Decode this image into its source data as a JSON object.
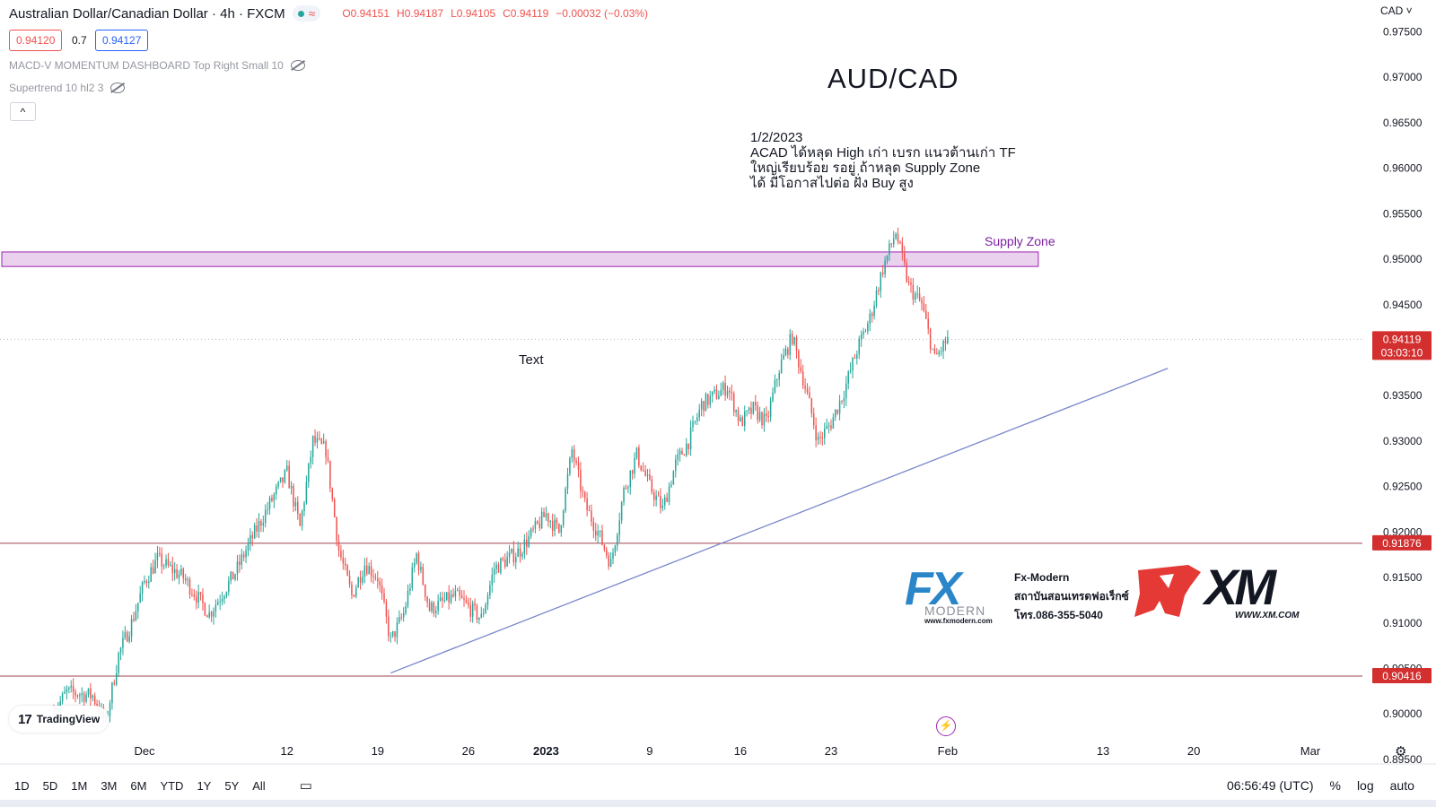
{
  "header": {
    "symbol_title": "Australian Dollar/Canadian Dollar · 4h · FXCM",
    "wave_symbol": "≈",
    "ohlc": {
      "open": "O0.94151",
      "high": "H0.94187",
      "low": "L0.94105",
      "close": "C0.94119",
      "change": "−0.00032 (−0.03%)"
    },
    "bid": "0.94120",
    "spread": "0.7",
    "ask": "0.94127"
  },
  "indicators": [
    {
      "label": "MACD-V MOMENTUM DASHBOARD Top Right Small 10"
    },
    {
      "label": "Supertrend 10 hl2 3"
    }
  ],
  "collapse_symbol": "^",
  "currency": "CAD ˅",
  "watermark": {
    "logo": "17",
    "text": "TradingView"
  },
  "ads": {
    "fx_letters": "FX",
    "fx_word": "MODERN",
    "fx_url": "www.fxmodern.com",
    "fx_lines": [
      "Fx-Modern",
      "สถาบันสอนเทรดฟอเร็กซ์",
      "โทร.086-355-5040"
    ],
    "xm_text": "XM",
    "xm_url": "WWW.XM.COM"
  },
  "bottom_bar": {
    "timeframes": [
      "1D",
      "5D",
      "1M",
      "3M",
      "6M",
      "YTD",
      "1Y",
      "5Y",
      "All"
    ],
    "calendar_symbol": "▭",
    "clock": "06:56:49 (UTC)",
    "percent": "%",
    "log": "log",
    "auto": "auto"
  },
  "icons": {
    "flash": "flash-icon",
    "gear": "gear-icon",
    "eye_hidden": "eye-hidden-icon",
    "calendar": "calendar-range-icon"
  },
  "colors": {
    "up": "#26a69a",
    "down": "#ef5350",
    "zone_fill": "#e1bee7",
    "zone_border": "#9c27b0",
    "trendline": "#7986cb",
    "level_line": "#a04050",
    "label_bg": "#d32f2f"
  },
  "chart_data": {
    "type": "candlestick",
    "title": "AUD/CAD",
    "annotation": "1/2/2023\nACAD ได้หลุด High เก่า เบรก แนวต้านเก่า TF\nใหญ่เรียบร้อย รอยู่ ถ้าหลุด Supply Zone\nได้ มีโอกาสไปต่อ ฝั่ง Buy สูง",
    "text_label": "Text",
    "x_labels": [
      {
        "label": "Dec",
        "date": "2022-12-01"
      },
      {
        "label": "12",
        "date": "2022-12-12"
      },
      {
        "label": "19",
        "date": "2022-12-19"
      },
      {
        "label": "26",
        "date": "2022-12-26"
      },
      {
        "label": "2023",
        "date": "2023-01-01"
      },
      {
        "label": "9",
        "date": "2023-01-09"
      },
      {
        "label": "16",
        "date": "2023-01-16"
      },
      {
        "label": "23",
        "date": "2023-01-23"
      },
      {
        "label": "Feb",
        "date": "2023-02-01"
      },
      {
        "label": "13",
        "date": "2023-02-13"
      },
      {
        "label": "20",
        "date": "2023-02-20"
      },
      {
        "label": "Mar",
        "date": "2023-03-01"
      }
    ],
    "y_ticks": [
      "0.97500",
      "0.97000",
      "0.96500",
      "0.96000",
      "0.95500",
      "0.95000",
      "0.94500",
      "0.94000",
      "0.93500",
      "0.93000",
      "0.92500",
      "0.92000",
      "0.91500",
      "0.91000",
      "0.90500",
      "0.90000",
      "0.89500"
    ],
    "y_range": [
      0.8945,
      0.9785
    ],
    "current_price": {
      "value": 0.94119,
      "label": "0.94119",
      "countdown": "03:03:10"
    },
    "levels": [
      {
        "value": 0.91876,
        "label": "0.91876"
      },
      {
        "value": 0.90416,
        "label": "0.90416"
      }
    ],
    "supply_zone": {
      "label": "Supply Zone",
      "low": 0.9492,
      "high": 0.9508,
      "end_date": "2023-02-08"
    },
    "trendline": {
      "start": {
        "date": "2022-12-20",
        "price": 0.9045
      },
      "end": {
        "date": "2023-02-18",
        "price": 0.938
      }
    },
    "price_path": [
      {
        "date": "2022-11-24",
        "price": 0.9002
      },
      {
        "date": "2022-11-25",
        "price": 0.9024
      },
      {
        "date": "2022-11-27",
        "price": 0.902
      },
      {
        "date": "2022-11-28",
        "price": 0.899
      },
      {
        "date": "2022-11-29",
        "price": 0.9065
      },
      {
        "date": "2022-11-30",
        "price": 0.91
      },
      {
        "date": "2022-12-01",
        "price": 0.9145
      },
      {
        "date": "2022-12-02",
        "price": 0.917
      },
      {
        "date": "2022-12-04",
        "price": 0.915
      },
      {
        "date": "2022-12-06",
        "price": 0.911
      },
      {
        "date": "2022-12-08",
        "price": 0.9155
      },
      {
        "date": "2022-12-09",
        "price": 0.9185
      },
      {
        "date": "2022-12-11",
        "price": 0.924
      },
      {
        "date": "2022-12-12",
        "price": 0.9265
      },
      {
        "date": "2022-12-13",
        "price": 0.9205
      },
      {
        "date": "2022-12-14",
        "price": 0.93
      },
      {
        "date": "2022-12-15",
        "price": 0.929
      },
      {
        "date": "2022-12-16",
        "price": 0.918
      },
      {
        "date": "2022-12-17",
        "price": 0.913
      },
      {
        "date": "2022-12-18",
        "price": 0.9165
      },
      {
        "date": "2022-12-19",
        "price": 0.915
      },
      {
        "date": "2022-12-20",
        "price": 0.908
      },
      {
        "date": "2022-12-21",
        "price": 0.911
      },
      {
        "date": "2022-12-22",
        "price": 0.9175
      },
      {
        "date": "2022-12-23",
        "price": 0.9115
      },
      {
        "date": "2022-12-25",
        "price": 0.913
      },
      {
        "date": "2022-12-27",
        "price": 0.9105
      },
      {
        "date": "2022-12-28",
        "price": 0.916
      },
      {
        "date": "2022-12-30",
        "price": 0.918
      },
      {
        "date": "2023-01-01",
        "price": 0.922
      },
      {
        "date": "2023-01-02",
        "price": 0.92
      },
      {
        "date": "2023-01-03",
        "price": 0.929
      },
      {
        "date": "2023-01-04",
        "price": 0.923
      },
      {
        "date": "2023-01-05",
        "price": 0.92
      },
      {
        "date": "2023-01-06",
        "price": 0.9165
      },
      {
        "date": "2023-01-07",
        "price": 0.9245
      },
      {
        "date": "2023-01-08",
        "price": 0.9285
      },
      {
        "date": "2023-01-09",
        "price": 0.925
      },
      {
        "date": "2023-01-10",
        "price": 0.9225
      },
      {
        "date": "2023-01-11",
        "price": 0.9275
      },
      {
        "date": "2023-01-12",
        "price": 0.93
      },
      {
        "date": "2023-01-13",
        "price": 0.934
      },
      {
        "date": "2023-01-15",
        "price": 0.936
      },
      {
        "date": "2023-01-16",
        "price": 0.932
      },
      {
        "date": "2023-01-17",
        "price": 0.9335
      },
      {
        "date": "2023-01-18",
        "price": 0.932
      },
      {
        "date": "2023-01-19",
        "price": 0.938
      },
      {
        "date": "2023-01-20",
        "price": 0.9415
      },
      {
        "date": "2023-01-21",
        "price": 0.936
      },
      {
        "date": "2023-01-22",
        "price": 0.93
      },
      {
        "date": "2023-01-23",
        "price": 0.932
      },
      {
        "date": "2023-01-24",
        "price": 0.9355
      },
      {
        "date": "2023-01-25",
        "price": 0.94
      },
      {
        "date": "2023-01-26",
        "price": 0.9435
      },
      {
        "date": "2023-01-27",
        "price": 0.949
      },
      {
        "date": "2023-01-28",
        "price": 0.953
      },
      {
        "date": "2023-01-29",
        "price": 0.947
      },
      {
        "date": "2023-01-30",
        "price": 0.945
      },
      {
        "date": "2023-01-31",
        "price": 0.939
      },
      {
        "date": "2023-02-01",
        "price": 0.9412
      }
    ]
  }
}
